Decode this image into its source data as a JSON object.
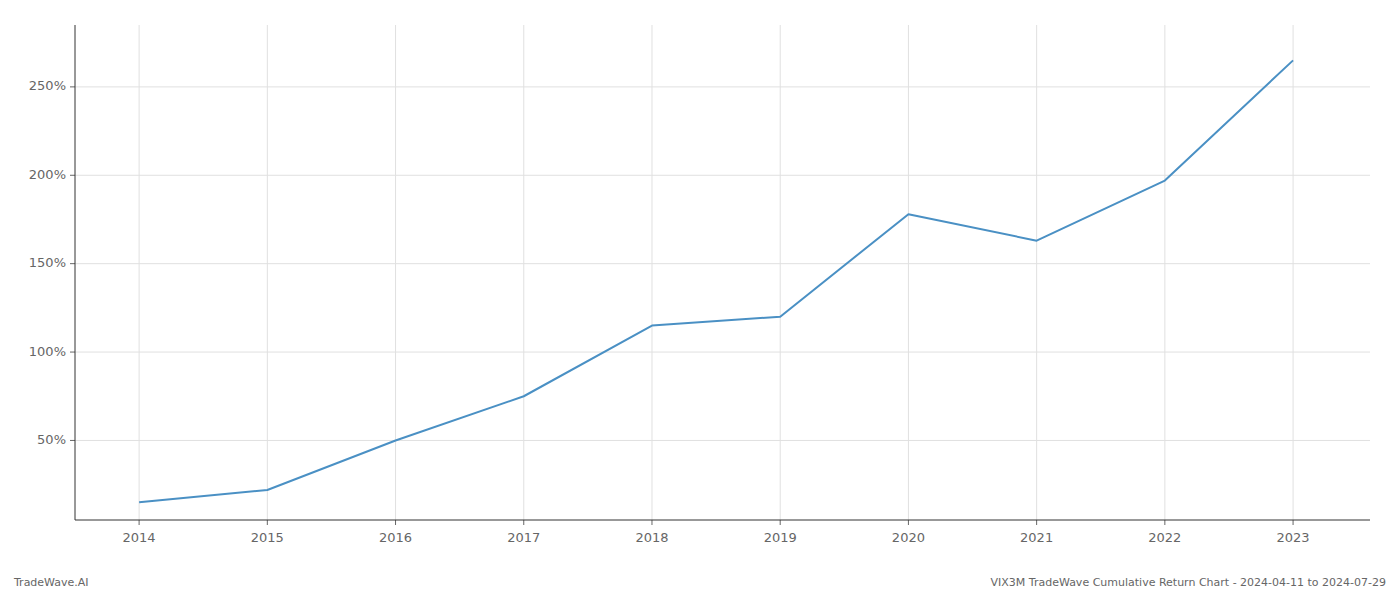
{
  "chart_data": {
    "type": "line",
    "x": [
      2014,
      2015,
      2016,
      2017,
      2018,
      2019,
      2020,
      2021,
      2022,
      2023
    ],
    "values": [
      15,
      22,
      50,
      75,
      115,
      120,
      178,
      163,
      197,
      265
    ],
    "color": "#4a90c4",
    "xlim": [
      2013.5,
      2023.6
    ],
    "xticks": [
      2014,
      2015,
      2016,
      2017,
      2018,
      2019,
      2020,
      2021,
      2022,
      2023
    ],
    "ylim": [
      5,
      285
    ],
    "yticks": [
      {
        "value": 50,
        "label": "50%"
      },
      {
        "value": 100,
        "label": "100%"
      },
      {
        "value": 150,
        "label": "150%"
      },
      {
        "value": 200,
        "label": "200%"
      },
      {
        "value": 250,
        "label": "250%"
      }
    ],
    "grid": true,
    "annotations": [
      "TradeWave.AI",
      "VIX3M TradeWave Cumulative Return Chart - 2024-04-11 to 2024-07-29"
    ]
  }
}
